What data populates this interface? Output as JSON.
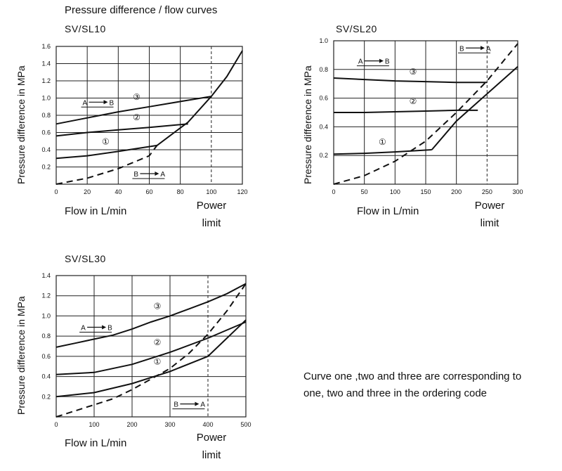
{
  "main_title": "Pressure difference / flow curves",
  "note": {
    "line1": "Curve one ,two and three are corresponding to",
    "line2": "one, two and three in the ordering code"
  },
  "chart_data": [
    {
      "type": "line",
      "title": "SV/SL10",
      "xlabel": "Flow in L/min",
      "ylabel": "Pressure difference in MPa",
      "power_limit_label": [
        "Power",
        "limit"
      ],
      "xlim": [
        0,
        120
      ],
      "ylim": [
        0,
        1.6
      ],
      "xticks": [
        0,
        20,
        40,
        60,
        80,
        100,
        120
      ],
      "yticks": [
        0.2,
        0.4,
        0.6,
        0.8,
        1.0,
        1.2,
        1.4,
        1.6
      ],
      "grid": true,
      "power_limit_x": 100,
      "series": [
        {
          "name": "③",
          "style": "solid",
          "x": [
            0,
            20,
            40,
            60,
            80,
            100
          ],
          "y": [
            0.7,
            0.77,
            0.84,
            0.9,
            0.96,
            1.02
          ]
        },
        {
          "name": "②",
          "style": "solid",
          "x": [
            0,
            20,
            40,
            60,
            85
          ],
          "y": [
            0.56,
            0.6,
            0.63,
            0.66,
            0.7
          ]
        },
        {
          "name": "①",
          "style": "solid",
          "x": [
            0,
            20,
            40,
            65
          ],
          "y": [
            0.3,
            0.33,
            0.38,
            0.45
          ]
        },
        {
          "name": "",
          "style": "solid",
          "x": [
            65,
            85,
            100,
            110,
            120
          ],
          "y": [
            0.45,
            0.72,
            1.02,
            1.25,
            1.55
          ]
        },
        {
          "name": "",
          "style": "dashed",
          "x": [
            0,
            20,
            40,
            60,
            65
          ],
          "y": [
            0.0,
            0.07,
            0.18,
            0.33,
            0.45
          ]
        }
      ],
      "annotations": [
        {
          "text": "A",
          "arrow_to": "B",
          "x": 17,
          "y": 0.92
        },
        {
          "text": "B",
          "arrow_to": "A",
          "x": 50,
          "y": 0.09
        }
      ]
    },
    {
      "type": "line",
      "title": "SV/SL20",
      "xlabel": "Flow in L/min",
      "ylabel": "Pressure difference in MPa",
      "power_limit_label": [
        "Power",
        "limit"
      ],
      "xlim": [
        0,
        300
      ],
      "ylim": [
        0,
        1.0
      ],
      "xticks": [
        0,
        50,
        100,
        150,
        200,
        250,
        300
      ],
      "yticks": [
        0.2,
        0.4,
        0.6,
        0.8,
        1.0
      ],
      "grid": true,
      "power_limit_x": 250,
      "series": [
        {
          "name": "③",
          "style": "solid",
          "x": [
            0,
            50,
            100,
            150,
            200,
            250
          ],
          "y": [
            0.74,
            0.73,
            0.72,
            0.715,
            0.71,
            0.71
          ]
        },
        {
          "name": "②",
          "style": "solid",
          "x": [
            0,
            50,
            100,
            150,
            200,
            235
          ],
          "y": [
            0.5,
            0.5,
            0.505,
            0.51,
            0.515,
            0.515
          ]
        },
        {
          "name": "①",
          "style": "solid",
          "x": [
            0,
            50,
            100,
            160
          ],
          "y": [
            0.21,
            0.215,
            0.225,
            0.24
          ]
        },
        {
          "name": "",
          "style": "solid",
          "x": [
            160,
            200,
            250,
            300
          ],
          "y": [
            0.24,
            0.44,
            0.63,
            0.82
          ]
        },
        {
          "name": "",
          "style": "dashed",
          "x": [
            0,
            50,
            100,
            150,
            200,
            250,
            300
          ],
          "y": [
            0.0,
            0.06,
            0.16,
            0.3,
            0.5,
            0.72,
            0.98
          ]
        }
      ],
      "annotations": [
        {
          "text": "A",
          "arrow_to": "B",
          "x": 40,
          "y": 0.84
        },
        {
          "text": "B",
          "arrow_to": "A",
          "x": 205,
          "y": 0.93
        }
      ]
    },
    {
      "type": "line",
      "title": "SV/SL30",
      "xlabel": "Flow in L/min",
      "ylabel": "Pressure difference in MPa",
      "power_limit_label": [
        "Power",
        "limit"
      ],
      "xlim": [
        0,
        500
      ],
      "ylim": [
        0,
        1.4
      ],
      "xticks": [
        0,
        100,
        200,
        300,
        400,
        500
      ],
      "yticks": [
        0.2,
        0.4,
        0.6,
        0.8,
        1.0,
        1.2,
        1.4
      ],
      "grid": true,
      "power_limit_x": 400,
      "series": [
        {
          "name": "③",
          "style": "solid",
          "x": [
            0,
            50,
            100,
            150,
            200,
            250,
            300,
            350,
            400,
            450,
            500
          ],
          "y": [
            0.69,
            0.73,
            0.77,
            0.81,
            0.87,
            0.94,
            1.0,
            1.07,
            1.14,
            1.22,
            1.32
          ]
        },
        {
          "name": "②",
          "style": "solid",
          "x": [
            0,
            100,
            200,
            300,
            400,
            500
          ],
          "y": [
            0.42,
            0.44,
            0.52,
            0.64,
            0.78,
            0.94
          ]
        },
        {
          "name": "①",
          "style": "solid",
          "x": [
            0,
            100,
            200,
            300,
            400,
            500
          ],
          "y": [
            0.2,
            0.24,
            0.33,
            0.45,
            0.6,
            0.96
          ]
        },
        {
          "name": "",
          "style": "dashed",
          "x": [
            0,
            100,
            150,
            200,
            300,
            350,
            400,
            450,
            500
          ],
          "y": [
            0.0,
            0.12,
            0.18,
            0.27,
            0.48,
            0.63,
            0.82,
            1.05,
            1.32
          ]
        }
      ],
      "annotations": [
        {
          "text": "A",
          "arrow_to": "B",
          "x": 65,
          "y": 0.86
        },
        {
          "text": "B",
          "arrow_to": "A",
          "x": 310,
          "y": 0.1
        }
      ]
    }
  ]
}
